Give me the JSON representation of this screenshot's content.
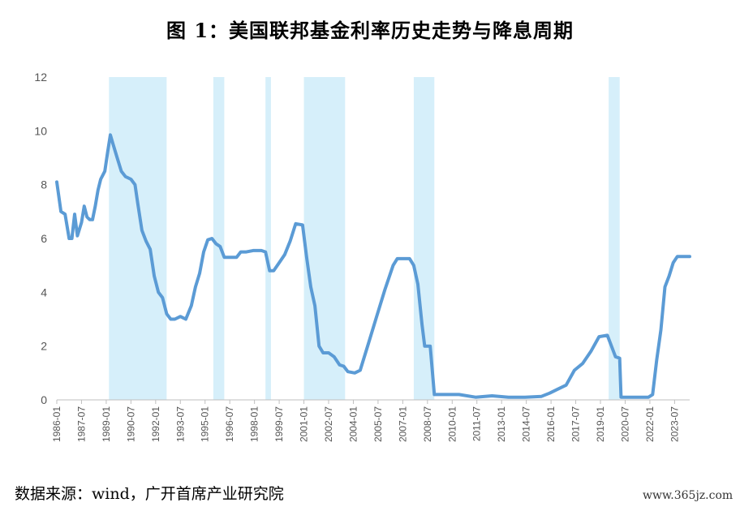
{
  "title": "图 1：美国联邦基金利率历史走势与降息周期",
  "source_note": "数据来源：wind，广开首席产业研究院",
  "watermark": "www.365jz.com",
  "colors": {
    "line": "#5B9BD5",
    "shade": "#D6EFFA",
    "axis": "#BFBFBF"
  },
  "chart_data": {
    "type": "line",
    "title": "图 1：美国联邦基金利率历史走势与降息周期",
    "xlabel": "",
    "ylabel": "",
    "ylim": [
      0,
      12
    ],
    "yticks": [
      0,
      2,
      4,
      6,
      8,
      10,
      12
    ],
    "xlim": [
      "1986-01",
      "2024-06"
    ],
    "xtick_labels": [
      "1986-01",
      "1987-07",
      "1989-01",
      "1990-07",
      "1992-01",
      "1993-07",
      "1995-01",
      "1996-07",
      "1998-01",
      "1999-07",
      "2001-01",
      "2002-07",
      "2004-01",
      "2005-07",
      "2007-01",
      "2008-07",
      "2010-01",
      "2011-07",
      "2013-01",
      "2014-07",
      "2016-01",
      "2017-07",
      "2019-01",
      "2020-07",
      "2022-01",
      "2023-07"
    ],
    "grid": false,
    "legend": "none",
    "shaded_periods_label": "降息周期",
    "shaded_periods": [
      [
        "1989-03",
        "1992-09"
      ],
      [
        "1995-07",
        "1996-03"
      ],
      [
        "1998-09",
        "1999-01"
      ],
      [
        "2001-01",
        "2003-07"
      ],
      [
        "2007-09",
        "2008-12"
      ],
      [
        "2019-07",
        "2020-03"
      ]
    ],
    "series": [
      {
        "values": [
          [
            "1986-01",
            8.1
          ],
          [
            "1986-04",
            7.0
          ],
          [
            "1986-07",
            6.9
          ],
          [
            "1986-10",
            6.0
          ],
          [
            "1986-12",
            6.0
          ],
          [
            "1987-02",
            6.9
          ],
          [
            "1987-04",
            6.1
          ],
          [
            "1987-07",
            6.6
          ],
          [
            "1987-09",
            7.2
          ],
          [
            "1987-11",
            6.8
          ],
          [
            "1988-01",
            6.7
          ],
          [
            "1988-03",
            6.7
          ],
          [
            "1988-05",
            7.2
          ],
          [
            "1988-07",
            7.8
          ],
          [
            "1988-09",
            8.2
          ],
          [
            "1988-12",
            8.5
          ],
          [
            "1989-02",
            9.2
          ],
          [
            "1989-04",
            9.85
          ],
          [
            "1989-06",
            9.5
          ],
          [
            "1989-09",
            9.0
          ],
          [
            "1989-12",
            8.5
          ],
          [
            "1990-03",
            8.3
          ],
          [
            "1990-07",
            8.2
          ],
          [
            "1990-10",
            8.0
          ],
          [
            "1990-12",
            7.3
          ],
          [
            "1991-03",
            6.3
          ],
          [
            "1991-06",
            5.9
          ],
          [
            "1991-09",
            5.6
          ],
          [
            "1991-12",
            4.6
          ],
          [
            "1992-03",
            4.0
          ],
          [
            "1992-06",
            3.8
          ],
          [
            "1992-09",
            3.2
          ],
          [
            "1992-12",
            3.0
          ],
          [
            "1993-03",
            3.0
          ],
          [
            "1993-07",
            3.1
          ],
          [
            "1993-11",
            3.0
          ],
          [
            "1994-03",
            3.5
          ],
          [
            "1994-06",
            4.2
          ],
          [
            "1994-09",
            4.7
          ],
          [
            "1994-12",
            5.5
          ],
          [
            "1995-03",
            5.95
          ],
          [
            "1995-06",
            6.0
          ],
          [
            "1995-09",
            5.8
          ],
          [
            "1995-12",
            5.7
          ],
          [
            "1996-03",
            5.3
          ],
          [
            "1996-07",
            5.3
          ],
          [
            "1996-12",
            5.3
          ],
          [
            "1997-03",
            5.5
          ],
          [
            "1997-07",
            5.5
          ],
          [
            "1997-12",
            5.55
          ],
          [
            "1998-06",
            5.55
          ],
          [
            "1998-09",
            5.5
          ],
          [
            "1998-12",
            4.8
          ],
          [
            "1999-03",
            4.8
          ],
          [
            "1999-07",
            5.1
          ],
          [
            "1999-11",
            5.4
          ],
          [
            "2000-03",
            5.9
          ],
          [
            "2000-07",
            6.55
          ],
          [
            "2000-12",
            6.5
          ],
          [
            "2001-03",
            5.3
          ],
          [
            "2001-06",
            4.2
          ],
          [
            "2001-09",
            3.5
          ],
          [
            "2001-12",
            2.0
          ],
          [
            "2002-03",
            1.75
          ],
          [
            "2002-07",
            1.75
          ],
          [
            "2002-11",
            1.6
          ],
          [
            "2003-03",
            1.3
          ],
          [
            "2003-06",
            1.25
          ],
          [
            "2003-09",
            1.05
          ],
          [
            "2004-02",
            1.0
          ],
          [
            "2004-06",
            1.1
          ],
          [
            "2004-12",
            2.1
          ],
          [
            "2005-06",
            3.1
          ],
          [
            "2005-12",
            4.1
          ],
          [
            "2006-06",
            5.0
          ],
          [
            "2006-09",
            5.25
          ],
          [
            "2007-06",
            5.25
          ],
          [
            "2007-09",
            5.0
          ],
          [
            "2007-12",
            4.3
          ],
          [
            "2008-03",
            2.8
          ],
          [
            "2008-05",
            2.0
          ],
          [
            "2008-09",
            2.0
          ],
          [
            "2008-12",
            0.2
          ],
          [
            "2009-06",
            0.2
          ],
          [
            "2010-06",
            0.2
          ],
          [
            "2011-06",
            0.1
          ],
          [
            "2012-06",
            0.15
          ],
          [
            "2013-06",
            0.1
          ],
          [
            "2014-06",
            0.1
          ],
          [
            "2015-06",
            0.13
          ],
          [
            "2015-12",
            0.25
          ],
          [
            "2016-06",
            0.4
          ],
          [
            "2016-12",
            0.55
          ],
          [
            "2017-06",
            1.1
          ],
          [
            "2017-12",
            1.35
          ],
          [
            "2018-06",
            1.8
          ],
          [
            "2018-12",
            2.35
          ],
          [
            "2019-06",
            2.4
          ],
          [
            "2019-09",
            2.0
          ],
          [
            "2019-12",
            1.6
          ],
          [
            "2020-03",
            1.55
          ],
          [
            "2020-04",
            0.1
          ],
          [
            "2020-12",
            0.1
          ],
          [
            "2021-06",
            0.1
          ],
          [
            "2021-12",
            0.1
          ],
          [
            "2022-03",
            0.2
          ],
          [
            "2022-06",
            1.5
          ],
          [
            "2022-09",
            2.6
          ],
          [
            "2022-12",
            4.2
          ],
          [
            "2023-03",
            4.6
          ],
          [
            "2023-06",
            5.1
          ],
          [
            "2023-09",
            5.33
          ],
          [
            "2023-12",
            5.33
          ],
          [
            "2024-06",
            5.33
          ]
        ]
      }
    ]
  }
}
